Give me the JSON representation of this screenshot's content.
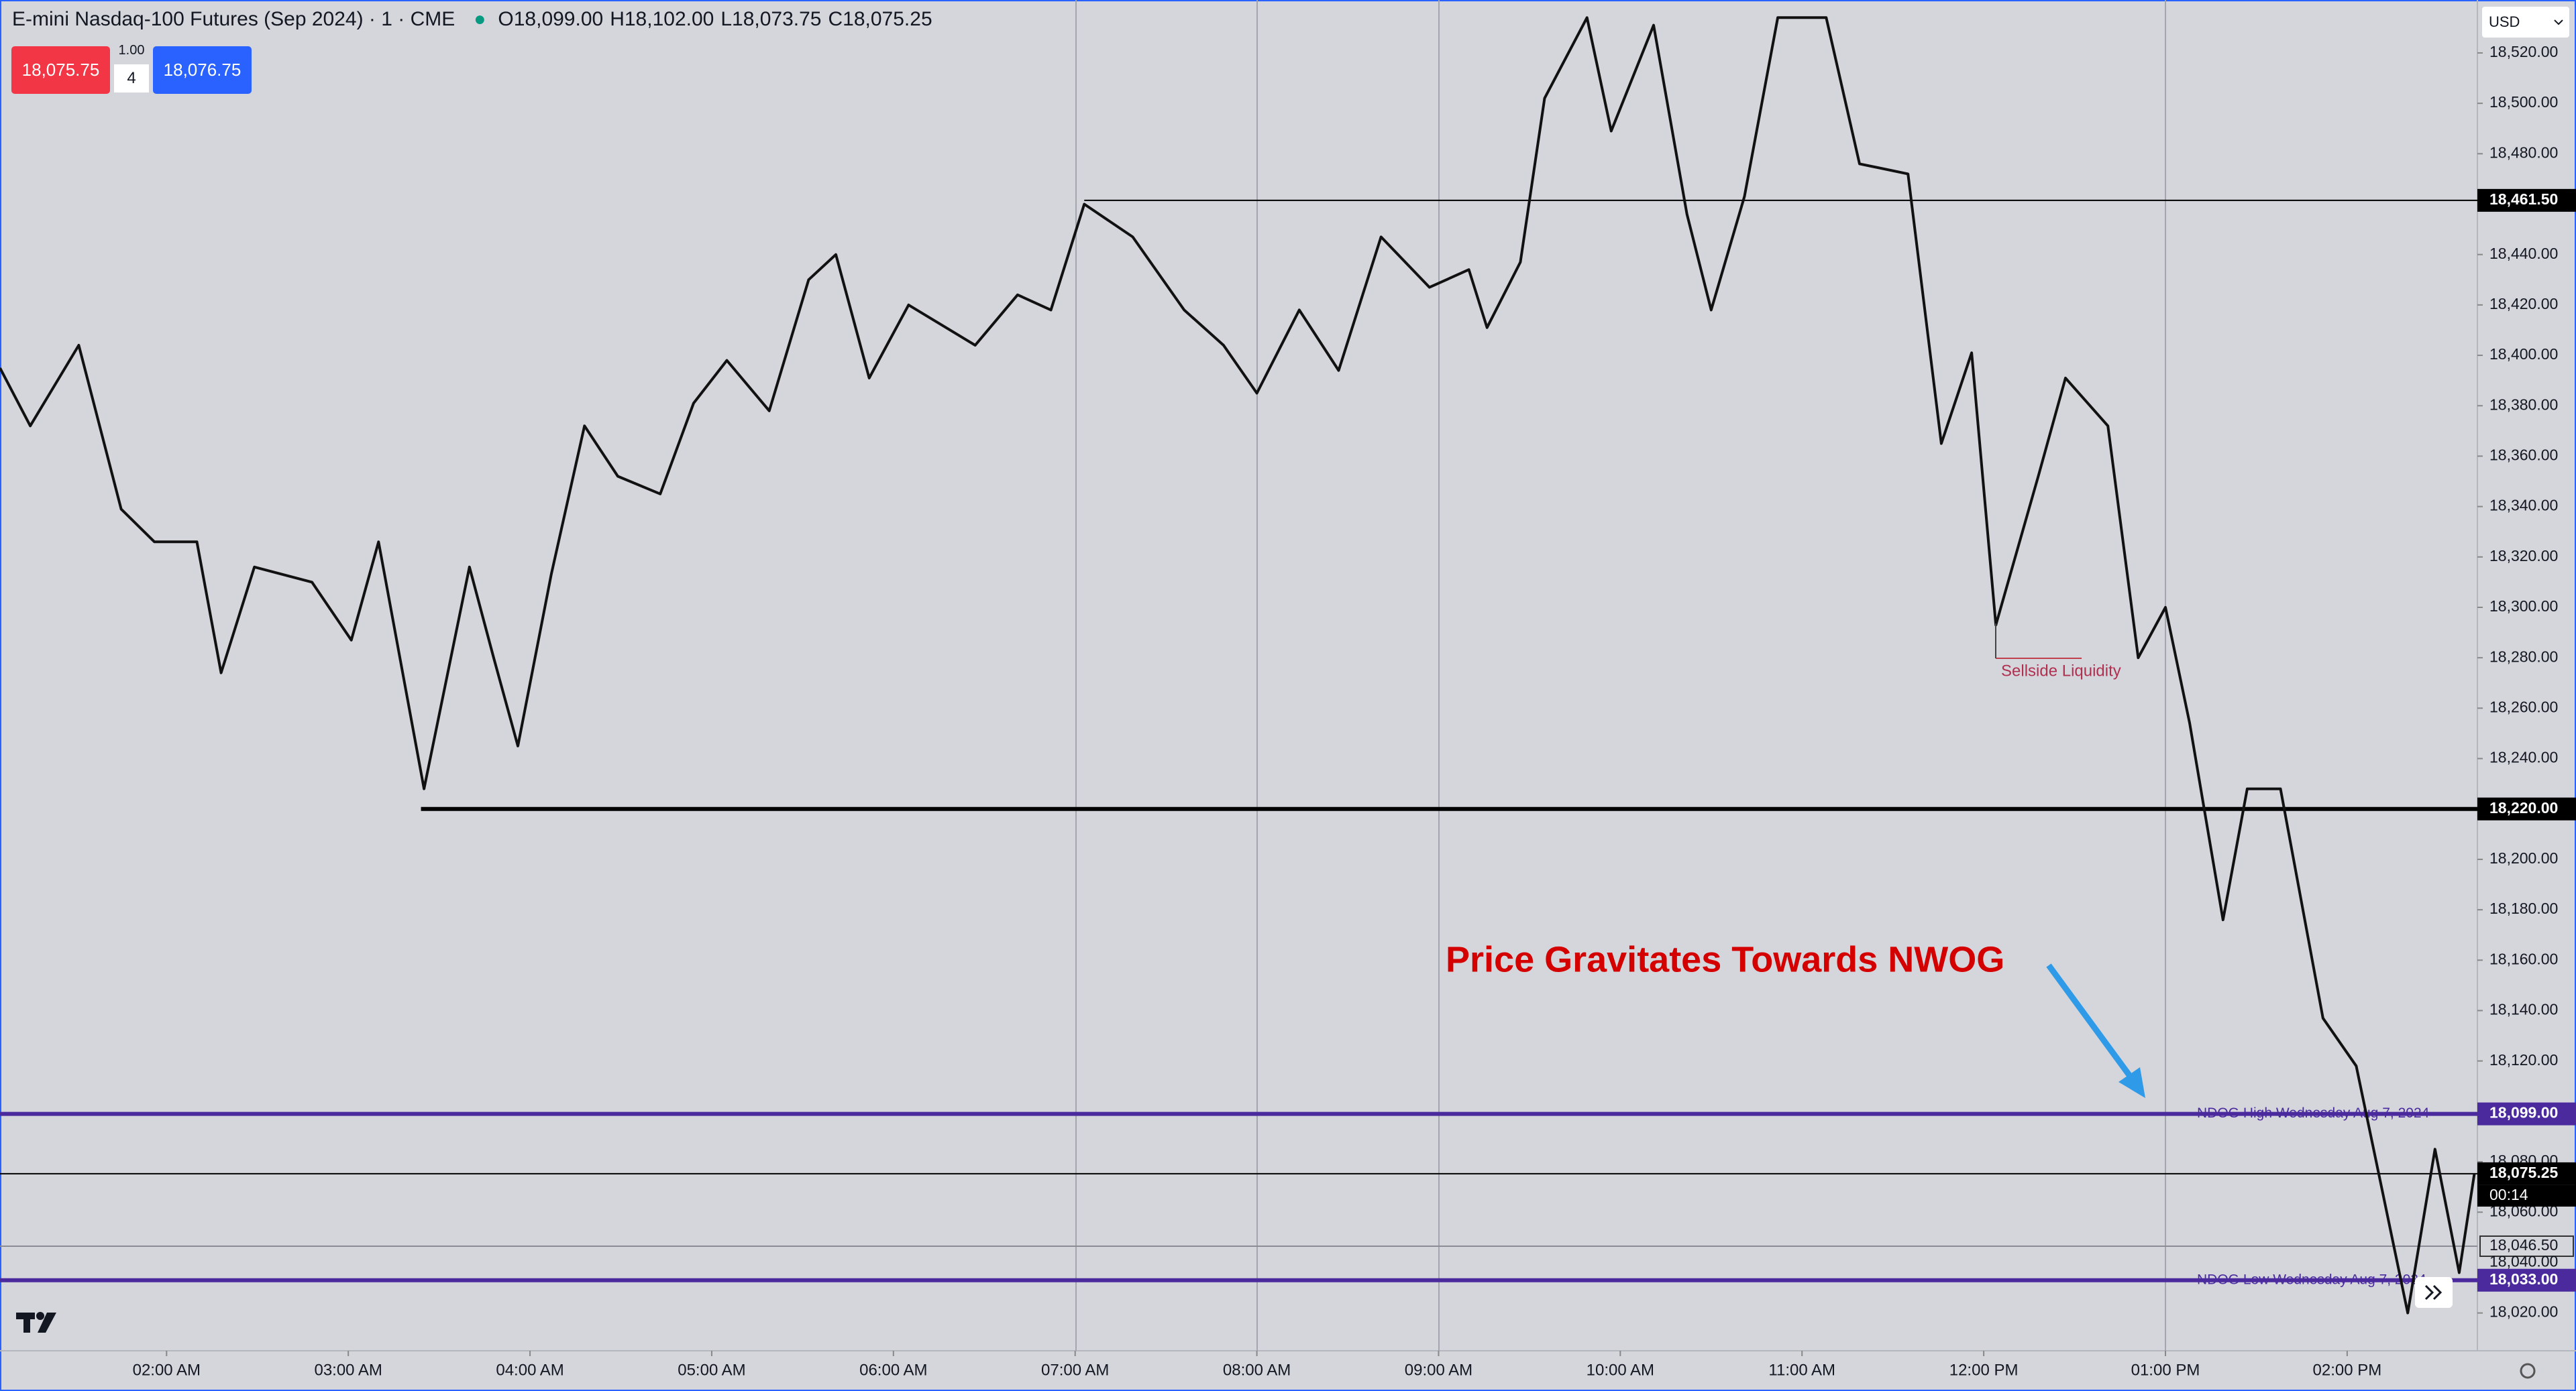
{
  "header": {
    "symbol": "E-mini Nasdaq-100 Futures (Sep 2024) · 1 · CME",
    "ohlc": [
      {
        "key": "O",
        "value": "18,099.00"
      },
      {
        "key": "H",
        "value": "18,102.00"
      },
      {
        "key": "L",
        "value": "18,073.75"
      },
      {
        "key": "C",
        "value": "18,075.25"
      }
    ],
    "sell_price": "18,075.75",
    "spread": "1.00",
    "quantity": "4",
    "buy_price": "18,076.75",
    "currency": "USD"
  },
  "chart_data": {
    "type": "line",
    "color": "#111111",
    "x": [
      "01:05 AM",
      "01:15 AM",
      "01:31 AM",
      "01:45 AM",
      "01:56 AM",
      "02:10 AM",
      "02:18 AM",
      "02:29 AM",
      "02:48 AM",
      "03:01 AM",
      "03:10 AM",
      "03:25 AM",
      "03:40 AM",
      "03:48 AM",
      "03:56 AM",
      "04:07 AM",
      "04:18 AM",
      "04:29 AM",
      "04:43 AM",
      "04:54 AM",
      "05:05 AM",
      "05:19 AM",
      "05:32 AM",
      "05:41 AM",
      "05:52 AM",
      "06:05 AM",
      "06:27 AM",
      "06:41 AM",
      "06:52 AM",
      "07:03 AM",
      "07:19 AM",
      "07:36 AM",
      "07:49 AM",
      "08:00 AM",
      "08:14 AM",
      "08:27 AM",
      "08:41 AM",
      "08:57 AM",
      "09:10 AM",
      "09:16 AM",
      "09:27 AM",
      "09:35 AM",
      "09:49 AM",
      "09:57 AM",
      "10:11 AM",
      "10:22 AM",
      "10:30 AM",
      "10:41 AM",
      "10:52 AM",
      "11:08 AM",
      "11:19 AM",
      "11:35 AM",
      "11:46 AM",
      "11:56 AM",
      "12:04 PM",
      "12:18 PM",
      "12:27 PM",
      "12:41 PM",
      "12:51 PM",
      "01:00 PM",
      "01:08 PM",
      "01:19 PM",
      "01:27 PM",
      "01:38 PM",
      "01:46 PM",
      "01:52 PM",
      "02:03 PM",
      "02:11 PM",
      "02:20 PM",
      "02:29 PM",
      "02:37 PM",
      "02:42 PM"
    ],
    "values": [
      18395,
      18372,
      18404,
      18339,
      18326,
      18326,
      18274,
      18316,
      18310,
      18287,
      18326,
      18228,
      18316,
      18280,
      18245,
      18313,
      18372,
      18352,
      18345,
      18381,
      18398,
      18378,
      18430,
      18440,
      18391,
      18420,
      18404,
      18424,
      18418,
      18460,
      18447,
      18418,
      18404,
      18385,
      18418,
      18394,
      18447,
      18427,
      18434,
      18411,
      18437,
      18502,
      18534,
      18489,
      18531,
      18456,
      18418,
      18463,
      18534,
      18534,
      18476,
      18472,
      18365,
      18401,
      18293,
      18352,
      18391,
      18372,
      18280,
      18300,
      18254,
      18176,
      18228,
      18228,
      18176,
      18137,
      18118,
      18072,
      18020,
      18085,
      18036,
      18075.25
    ],
    "xlim": [
      "01:05 AM",
      "02:43 PM"
    ],
    "xticks": [
      "02:00 AM",
      "03:00 AM",
      "04:00 AM",
      "05:00 AM",
      "06:00 AM",
      "07:00 AM",
      "08:00 AM",
      "09:00 AM",
      "10:00 AM",
      "11:00 AM",
      "12:00 PM",
      "01:00 PM",
      "02:00 PM"
    ],
    "ylim": [
      18005,
      18541
    ],
    "yticks": [
      {
        "value": 18520,
        "label": "18,520.00"
      },
      {
        "value": 18500,
        "label": "18,500.00"
      },
      {
        "value": 18480,
        "label": "18,480.00"
      },
      {
        "value": 18440,
        "label": "18,440.00"
      },
      {
        "value": 18420,
        "label": "18,420.00"
      },
      {
        "value": 18400,
        "label": "18,400.00"
      },
      {
        "value": 18380,
        "label": "18,380.00"
      },
      {
        "value": 18360,
        "label": "18,360.00"
      },
      {
        "value": 18340,
        "label": "18,340.00"
      },
      {
        "value": 18320,
        "label": "18,320.00"
      },
      {
        "value": 18300,
        "label": "18,300.00"
      },
      {
        "value": 18280,
        "label": "18,280.00"
      },
      {
        "value": 18260,
        "label": "18,260.00"
      },
      {
        "value": 18240,
        "label": "18,240.00"
      },
      {
        "value": 18200,
        "label": "18,200.00"
      },
      {
        "value": 18180,
        "label": "18,180.00"
      },
      {
        "value": 18160,
        "label": "18,160.00"
      },
      {
        "value": 18140,
        "label": "18,140.00"
      },
      {
        "value": 18120,
        "label": "18,120.00"
      },
      {
        "value": 18080,
        "label": "18,080.00"
      },
      {
        "value": 18060,
        "label": "18,060.00"
      },
      {
        "value": 18020,
        "label": "18,020.00"
      }
    ],
    "levels": [
      {
        "value": 18461.5,
        "label": "18,461.50",
        "color": "#000000",
        "start": "07:03 AM",
        "style": "thin",
        "label_style": "filled"
      },
      {
        "value": 18220,
        "label": "18,220.00",
        "color": "#000000",
        "start": "03:24 AM",
        "style": "bold",
        "label_style": "filled"
      },
      {
        "value": 18099,
        "label": "18,099.00",
        "color": "#4b2a9e",
        "style": "bold",
        "label_style": "filled",
        "text": "NDOG High Wednesday Aug 7, 2024"
      },
      {
        "value": 18075.25,
        "label": "18,075.25",
        "color": "#000000",
        "style": "thin",
        "label_style": "filled",
        "countdown": "00:14"
      },
      {
        "value": 18046.5,
        "label": "18,046.50",
        "color": "#8a8d96",
        "style": "thin",
        "label_style": "outline"
      },
      {
        "value": 18040,
        "label": "18,040.00",
        "color": "#8a8d96",
        "style": "none",
        "label_style": "plain"
      },
      {
        "value": 18033,
        "label": "18,033.00",
        "color": "#4b2a9e",
        "style": "bold",
        "label_style": "filled",
        "text": "NDOG Low Wednesday Aug 7, 2024"
      }
    ],
    "annotations": [
      {
        "text": "Price Gravitates Towards NWOG",
        "color": "#d40000"
      },
      {
        "text": "Sellside Liquidity",
        "color": "#b0304f"
      }
    ]
  }
}
